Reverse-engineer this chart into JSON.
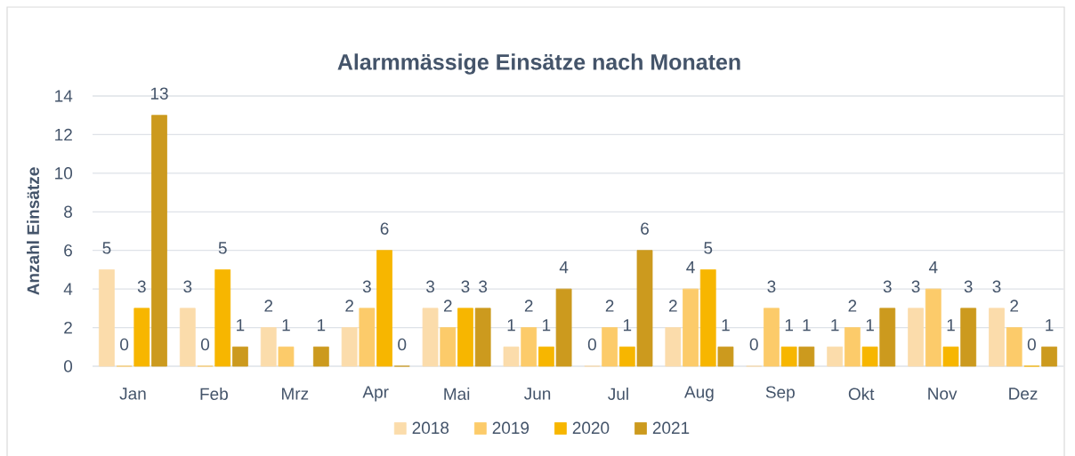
{
  "chart_data": {
    "type": "bar",
    "title": "Alarmmässige Einsätze nach Monaten",
    "ylabel": "Anzahl Einsätze",
    "categories": [
      "Jan",
      "Feb",
      "Mrz",
      "Apr",
      "Mai",
      "Jun",
      "Jul",
      "Aug",
      "Sep",
      "Okt",
      "Nov",
      "Dez"
    ],
    "series": [
      {
        "name": "2018",
        "color": "#fbdcab",
        "values": [
          5,
          3,
          2,
          2,
          3,
          1,
          0,
          2,
          0,
          1,
          3,
          3
        ]
      },
      {
        "name": "2019",
        "color": "#fccb6a",
        "values": [
          0,
          0,
          1,
          3,
          2,
          2,
          2,
          4,
          3,
          2,
          4,
          2
        ]
      },
      {
        "name": "2020",
        "color": "#f7b600",
        "values": [
          3,
          5,
          null,
          6,
          3,
          1,
          1,
          5,
          1,
          1,
          1,
          0
        ]
      },
      {
        "name": "2021",
        "color": "#cc9a1e",
        "values": [
          13,
          1,
          1,
          0,
          3,
          4,
          6,
          1,
          1,
          3,
          3,
          1
        ]
      }
    ],
    "ylim": [
      0,
      14
    ],
    "yticks": [
      0,
      2,
      4,
      6,
      8,
      10,
      12,
      14
    ],
    "grid": "y",
    "legend": "bottom",
    "data_labels": true
  }
}
